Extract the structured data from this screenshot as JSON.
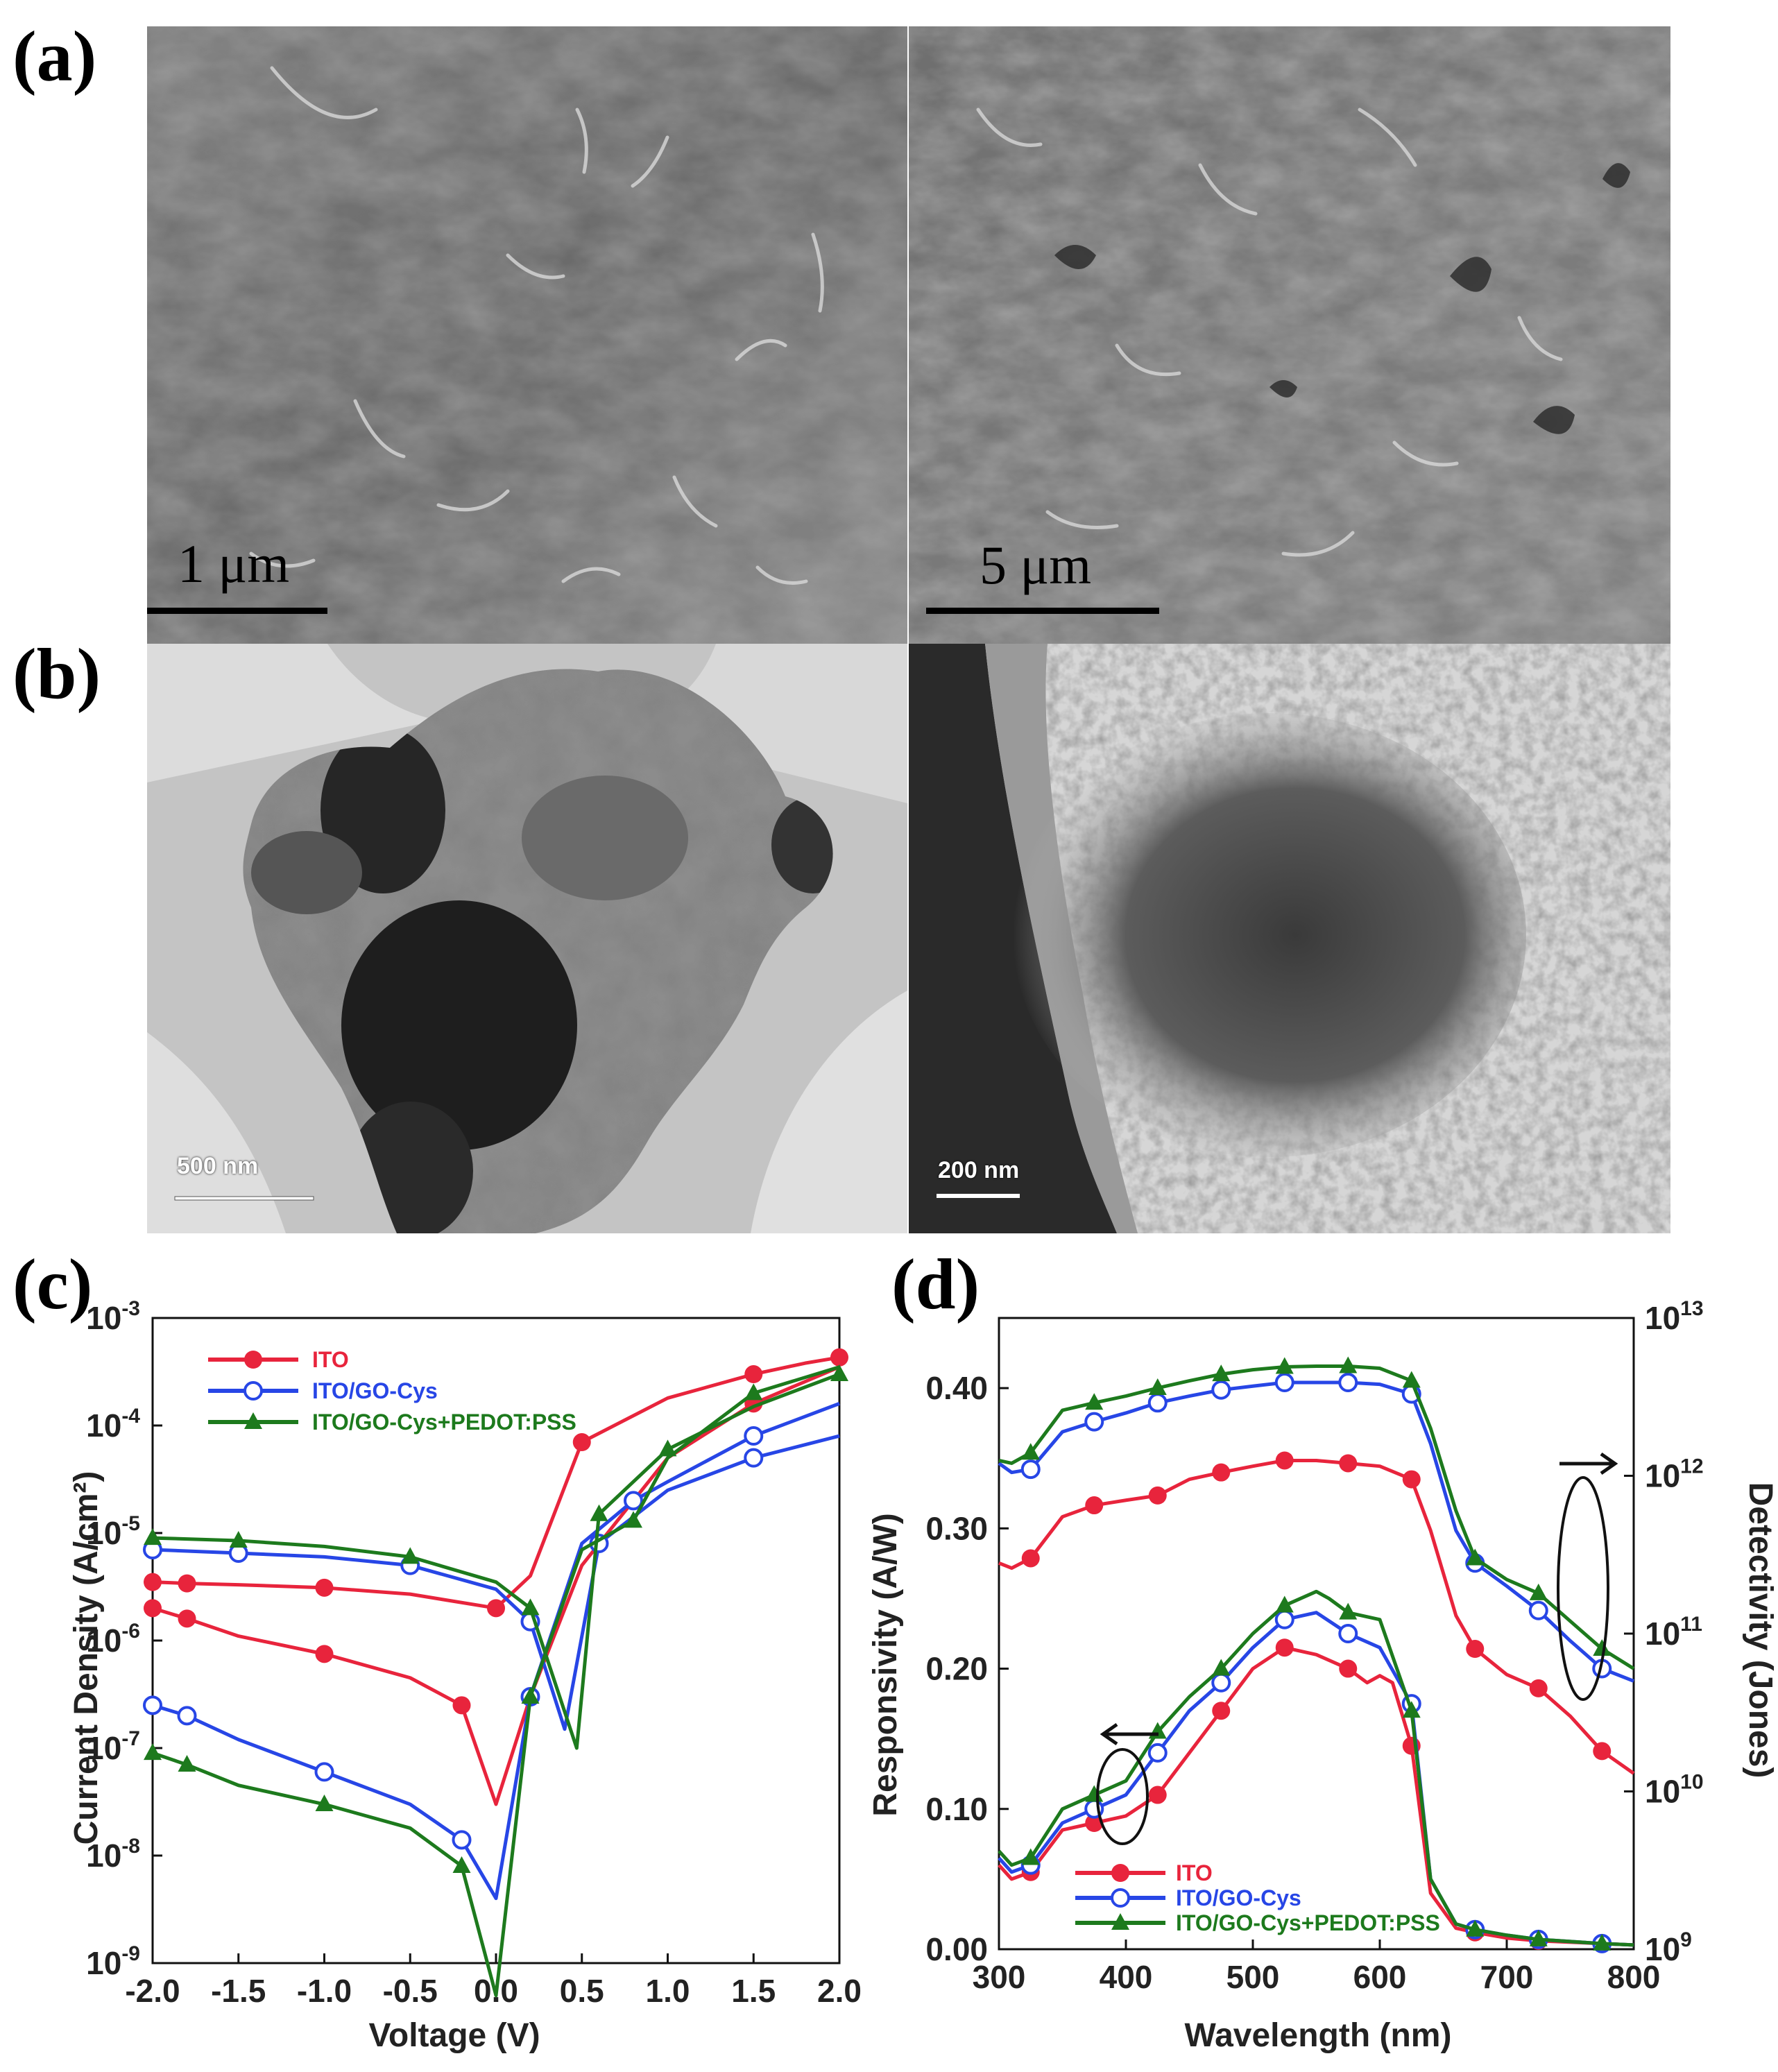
{
  "panels": {
    "a": {
      "letter": "(a)",
      "left_scale": "1 μm",
      "right_scale": "5 μm"
    },
    "b": {
      "letter": "(b)",
      "left_scale": "500 nm",
      "right_scale": "200 nm"
    },
    "c": {
      "letter": "(c)"
    },
    "d": {
      "letter": "(d)"
    }
  },
  "colors": {
    "ito": "#e8243c",
    "gocys": "#2746e6",
    "pedot": "#1d7a1d"
  },
  "chart_data": [
    {
      "type": "line",
      "panel": "c",
      "xlabel": "Voltage (V)",
      "ylabel": "Current Density (A/cm²)",
      "xlim": [
        -2.0,
        2.0
      ],
      "ylim_log": [
        1e-09,
        0.001
      ],
      "yscale": "log",
      "xticks": [
        "-2.0",
        "-1.5",
        "-1.0",
        "-0.5",
        "0.0",
        "0.5",
        "1.0",
        "1.5",
        "2.0"
      ],
      "yticks": [
        {
          "base": "10",
          "exp": "-3"
        },
        {
          "base": "10",
          "exp": "-4"
        },
        {
          "base": "10",
          "exp": "-5"
        },
        {
          "base": "10",
          "exp": "-6"
        },
        {
          "base": "10",
          "exp": "-7"
        },
        {
          "base": "10",
          "exp": "-8"
        },
        {
          "base": "10",
          "exp": "-9"
        }
      ],
      "legend_position": "top-left",
      "series": [
        {
          "name": "ITO",
          "marker": "filled-circle",
          "color_key": "ito",
          "light": {
            "x": [
              -2.0,
              -1.8,
              -1.5,
              -1.0,
              -0.5,
              0.0,
              0.2,
              0.5,
              1.0,
              1.5,
              1.8,
              2.0
            ],
            "y": [
              3.5e-06,
              3.4e-06,
              3.3e-06,
              3.1e-06,
              2.7e-06,
              2e-06,
              4e-06,
              7e-05,
              0.00018,
              0.0003,
              0.00038,
              0.00043
            ]
          },
          "dark": {
            "x": [
              -2.0,
              -1.8,
              -1.5,
              -1.0,
              -0.5,
              -0.2,
              0.0,
              0.2,
              0.5,
              0.8,
              1.0,
              1.5,
              2.0
            ],
            "y": [
              2e-06,
              1.6e-06,
              1.1e-06,
              7.5e-07,
              4.5e-07,
              2.5e-07,
              3e-08,
              3e-07,
              5e-06,
              2e-05,
              5e-05,
              0.00016,
              0.00035
            ]
          }
        },
        {
          "name": "ITO/GO-Cys",
          "marker": "open-circle",
          "color_key": "gocys",
          "light": {
            "x": [
              -2.0,
              -1.5,
              -1.0,
              -0.5,
              0.0,
              0.2,
              0.4,
              0.6,
              1.0,
              1.5,
              2.0
            ],
            "y": [
              7e-06,
              6.5e-06,
              6e-06,
              5e-06,
              3e-06,
              1.5e-06,
              1.5e-07,
              8e-06,
              2.5e-05,
              5e-05,
              8e-05
            ]
          },
          "dark": {
            "x": [
              -2.0,
              -1.8,
              -1.5,
              -1.0,
              -0.5,
              -0.2,
              0.0,
              0.2,
              0.5,
              0.8,
              1.0,
              1.5,
              2.0
            ],
            "y": [
              2.5e-07,
              2e-07,
              1.2e-07,
              6e-08,
              3e-08,
              1.4e-08,
              4e-09,
              3e-07,
              8e-06,
              2e-05,
              3e-05,
              8e-05,
              0.00016
            ]
          }
        },
        {
          "name": "ITO/GO-Cys+PEDOT:PSS",
          "marker": "filled-triangle",
          "color_key": "pedot",
          "light": {
            "x": [
              -2.0,
              -1.5,
              -1.0,
              -0.5,
              0.0,
              0.2,
              0.47,
              0.6,
              0.8,
              1.0,
              1.5,
              2.0
            ],
            "y": [
              9e-06,
              8.5e-06,
              7.5e-06,
              6e-06,
              3.5e-06,
              2e-06,
              1e-07,
              1.5e-05,
              3e-05,
              6e-05,
              0.00015,
              0.0003
            ]
          },
          "dark": {
            "x": [
              -2.0,
              -1.8,
              -1.5,
              -1.0,
              -0.5,
              -0.2,
              0.0,
              0.2,
              0.5,
              0.8,
              1.0,
              1.5,
              2.0
            ],
            "y": [
              9e-08,
              7e-08,
              4.5e-08,
              3e-08,
              1.8e-08,
              8e-09,
              5e-10,
              3e-07,
              7e-06,
              1.3e-05,
              5e-05,
              0.0002,
              0.00035
            ]
          }
        }
      ]
    },
    {
      "type": "line",
      "panel": "d",
      "xlabel": "Wavelength (nm)",
      "ylabel": "Responsivity (A/W)",
      "y2label": "Detectivity (Jones)",
      "xlim": [
        300,
        800
      ],
      "ylim": [
        0.0,
        0.45
      ],
      "y2lim_log": [
        1000000000.0,
        10000000000000.0
      ],
      "y2scale": "log",
      "xticks": [
        "300",
        "400",
        "500",
        "600",
        "700",
        "800"
      ],
      "yticks": [
        "0.00",
        "0.10",
        "0.20",
        "0.30",
        "0.40"
      ],
      "y2ticks": [
        {
          "base": "10",
          "exp": "9"
        },
        {
          "base": "10",
          "exp": "10"
        },
        {
          "base": "10",
          "exp": "11"
        },
        {
          "base": "10",
          "exp": "12"
        },
        {
          "base": "10",
          "exp": "13"
        }
      ],
      "legend_position": "bottom-left",
      "series": [
        {
          "name": "ITO",
          "marker": "filled-circle",
          "color_key": "ito",
          "responsivity": {
            "x": [
              300,
              310,
              325,
              350,
              375,
              400,
              425,
              450,
              475,
              500,
              525,
              550,
              575,
              590,
              600,
              610,
              625,
              640,
              660,
              675,
              700,
              725,
              775,
              800
            ],
            "y": [
              0.06,
              0.05,
              0.055,
              0.085,
              0.09,
              0.095,
              0.11,
              0.14,
              0.17,
              0.2,
              0.215,
              0.21,
              0.2,
              0.19,
              0.195,
              0.19,
              0.145,
              0.04,
              0.015,
              0.012,
              0.008,
              0.006,
              0.004,
              0.003
            ]
          },
          "detectivity": {
            "x": [
              300,
              310,
              325,
              350,
              375,
              400,
              425,
              450,
              475,
              500,
              525,
              550,
              575,
              600,
              625,
              640,
              660,
              675,
              700,
              725,
              750,
              775,
              800
            ],
            "y": [
              280000000000.0,
              260000000000.0,
              300000000000.0,
              550000000000.0,
              650000000000.0,
              700000000000.0,
              750000000000.0,
              950000000000.0,
              1050000000000.0,
              1150000000000.0,
              1250000000000.0,
              1250000000000.0,
              1200000000000.0,
              1150000000000.0,
              950000000000.0,
              450000000000.0,
              130000000000.0,
              80000000000.0,
              55000000000.0,
              45000000000.0,
              30000000000.0,
              18000000000.0,
              13000000000.0
            ]
          }
        },
        {
          "name": "ITO/GO-Cys",
          "marker": "open-circle",
          "color_key": "gocys",
          "responsivity": {
            "x": [
              300,
              310,
              325,
              350,
              375,
              400,
              425,
              450,
              475,
              500,
              525,
              550,
              575,
              600,
              625,
              640,
              660,
              675,
              700,
              725,
              775,
              800
            ],
            "y": [
              0.065,
              0.055,
              0.06,
              0.09,
              0.1,
              0.11,
              0.14,
              0.17,
              0.19,
              0.215,
              0.235,
              0.24,
              0.225,
              0.215,
              0.175,
              0.05,
              0.018,
              0.014,
              0.01,
              0.007,
              0.004,
              0.003
            ]
          },
          "detectivity": {
            "x": [
              300,
              310,
              325,
              350,
              375,
              400,
              425,
              450,
              475,
              500,
              525,
              550,
              575,
              600,
              625,
              640,
              660,
              675,
              700,
              725,
              750,
              775,
              800
            ],
            "y": [
              1200000000000.0,
              1050000000000.0,
              1100000000000.0,
              1900000000000.0,
              2200000000000.0,
              2500000000000.0,
              2900000000000.0,
              3200000000000.0,
              3500000000000.0,
              3700000000000.0,
              3900000000000.0,
              3900000000000.0,
              3900000000000.0,
              3800000000000.0,
              3300000000000.0,
              1600000000000.0,
              450000000000.0,
              280000000000.0,
              200000000000.0,
              140000000000.0,
              90000000000.0,
              60000000000.0,
              50000000000.0
            ]
          }
        },
        {
          "name": "ITO/GO-Cys+PEDOT:PSS",
          "marker": "filled-triangle",
          "color_key": "pedot",
          "responsivity": {
            "x": [
              300,
              310,
              325,
              350,
              375,
              400,
              425,
              450,
              475,
              500,
              525,
              550,
              560,
              575,
              600,
              625,
              640,
              660,
              675,
              700,
              725,
              775,
              800
            ],
            "y": [
              0.07,
              0.06,
              0.065,
              0.1,
              0.11,
              0.12,
              0.155,
              0.18,
              0.2,
              0.225,
              0.245,
              0.255,
              0.25,
              0.24,
              0.235,
              0.17,
              0.05,
              0.018,
              0.014,
              0.01,
              0.007,
              0.004,
              0.003
            ]
          },
          "detectivity": {
            "x": [
              300,
              310,
              325,
              350,
              375,
              400,
              425,
              450,
              475,
              500,
              525,
              550,
              575,
              600,
              625,
              640,
              660,
              675,
              700,
              725,
              750,
              775,
              800
            ],
            "y": [
              1250000000000.0,
              1200000000000.0,
              1400000000000.0,
              2600000000000.0,
              2900000000000.0,
              3200000000000.0,
              3600000000000.0,
              4000000000000.0,
              4400000000000.0,
              4700000000000.0,
              4900000000000.0,
              4950000000000.0,
              4950000000000.0,
              4800000000000.0,
              4000000000000.0,
              2000000000000.0,
              600000000000.0,
              300000000000.0,
              220000000000.0,
              180000000000.0,
              120000000000.0,
              80000000000.0,
              60000000000.0
            ]
          }
        }
      ]
    }
  ]
}
